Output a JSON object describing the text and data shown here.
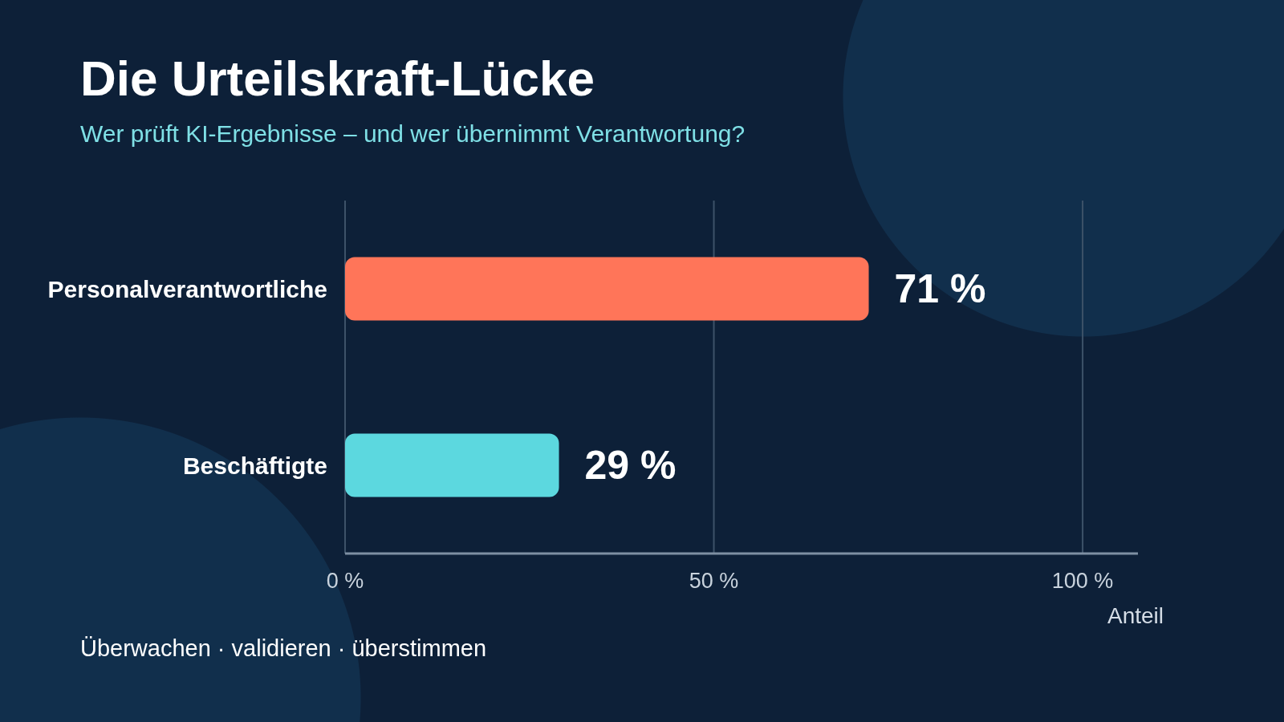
{
  "chart_data": {
    "type": "bar",
    "orientation": "horizontal",
    "title": "Die Urteilskraft-Lücke",
    "subtitle": "Wer prüft KI-Ergebnisse – und wer übernimmt Verantwortung?",
    "categories": [
      "Personalverantwortliche",
      "Beschäftigte"
    ],
    "values": [
      71,
      29
    ],
    "colors": [
      "#ff7559",
      "#5cd8df"
    ],
    "value_labels": [
      "71 %",
      "29 %"
    ],
    "xlim": [
      0,
      107.5
    ],
    "xticks": [
      {
        "value": 0,
        "label": "0 %"
      },
      {
        "value": 50,
        "label": "50 %"
      },
      {
        "value": 100,
        "label": "100 %"
      }
    ],
    "xlabel": "Anteil",
    "grid": "x",
    "legend": false,
    "annotations": [
      "Überwachen · validieren · überstimmen"
    ]
  }
}
